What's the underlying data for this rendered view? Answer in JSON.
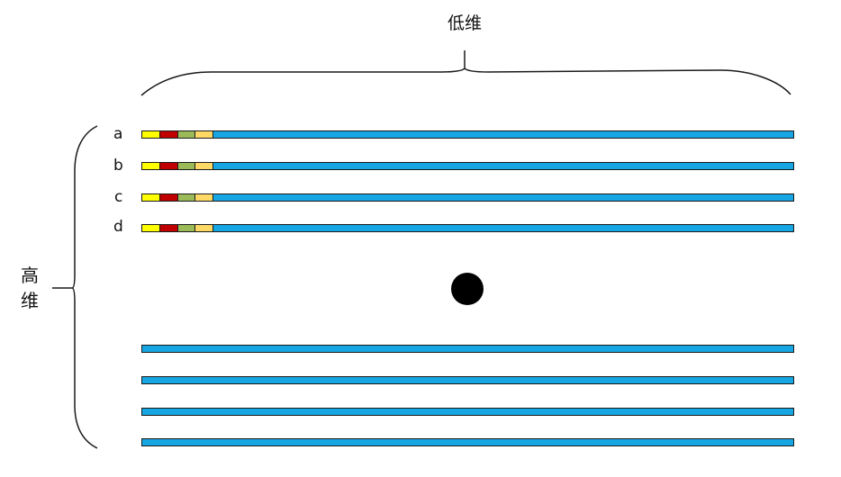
{
  "top_label": "低维",
  "side_label_chars": [
    "高",
    "维"
  ],
  "row_labels": [
    "a",
    "b",
    "c",
    "d"
  ],
  "colors": {
    "bar": "#16A6E4",
    "seg_yellow": "#FFFF00",
    "seg_red": "#C00000",
    "seg_green": "#9BBB59",
    "seg_orange": "#FFD966",
    "dot": "#000000",
    "line": "#1a1a1a"
  },
  "labeled_rows": [
    {
      "label": "a",
      "segments": [
        "seg_yellow",
        "seg_red",
        "seg_green",
        "seg_orange",
        "bar"
      ]
    },
    {
      "label": "b",
      "segments": [
        "seg_yellow",
        "seg_red",
        "seg_green",
        "seg_orange",
        "bar"
      ]
    },
    {
      "label": "c",
      "segments": [
        "seg_yellow",
        "seg_red",
        "seg_green",
        "seg_orange",
        "bar"
      ]
    },
    {
      "label": "d",
      "segments": [
        "seg_yellow",
        "seg_red",
        "seg_green",
        "seg_orange",
        "bar"
      ]
    }
  ],
  "plain_row_count": 4
}
